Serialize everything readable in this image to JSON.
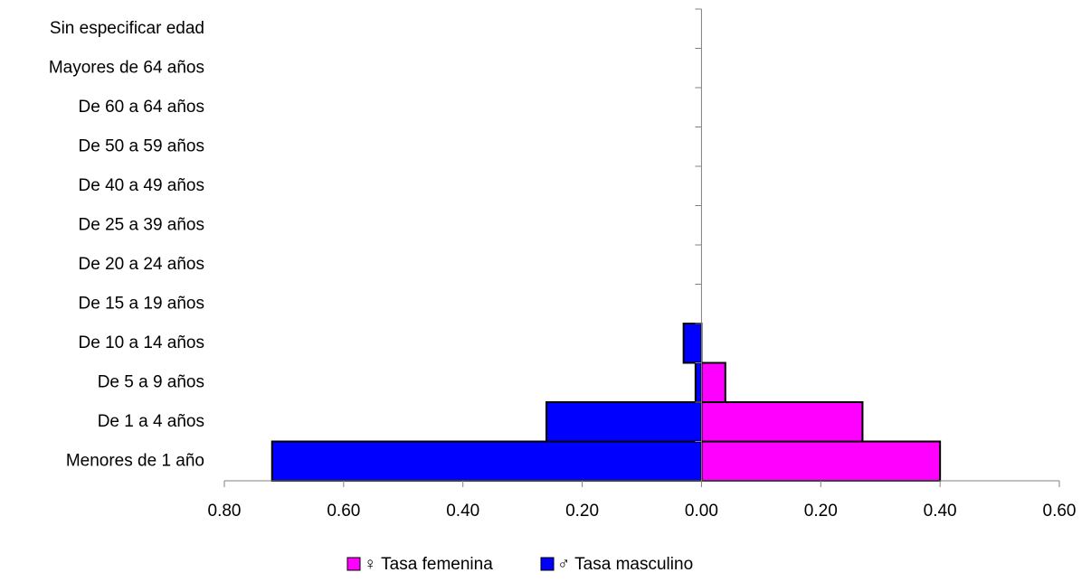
{
  "chart_data": {
    "type": "pyramid",
    "categories": [
      "Sin especificar edad",
      "Mayores de 64 años",
      "De 60 a 64 años",
      "De 50 a 59 años",
      "De 40 a 49 años",
      "De 25 a 39 años",
      "De 20 a 24 años",
      "De 15 a 19 años",
      "De 10 a 14 años",
      "De 5 a 9 años",
      "De 1 a 4 años",
      "Menores de 1 año"
    ],
    "series": [
      {
        "name": "♀ Tasa femenina",
        "color": "#ff00ff",
        "values": [
          0,
          0,
          0,
          0,
          0,
          0,
          0,
          0,
          0,
          0.04,
          0.27,
          0.4
        ]
      },
      {
        "name": "♂ Tasa masculino",
        "color": "#0000ff",
        "values": [
          0,
          0,
          0,
          0,
          0,
          0,
          0,
          0,
          -0.03,
          -0.01,
          -0.26,
          -0.72
        ]
      }
    ],
    "xlim": [
      -0.8,
      0.6
    ],
    "xticks": [
      {
        "value": -0.8,
        "label": "0.80"
      },
      {
        "value": -0.6,
        "label": "0.60"
      },
      {
        "value": -0.4,
        "label": "0.40"
      },
      {
        "value": -0.2,
        "label": "0.20"
      },
      {
        "value": 0,
        "label": "0.00"
      },
      {
        "value": 0.2,
        "label": "0.20"
      },
      {
        "value": 0.4,
        "label": "0.40"
      },
      {
        "value": 0.6,
        "label": "0.60"
      }
    ],
    "grid": false,
    "legend": "bottom"
  }
}
